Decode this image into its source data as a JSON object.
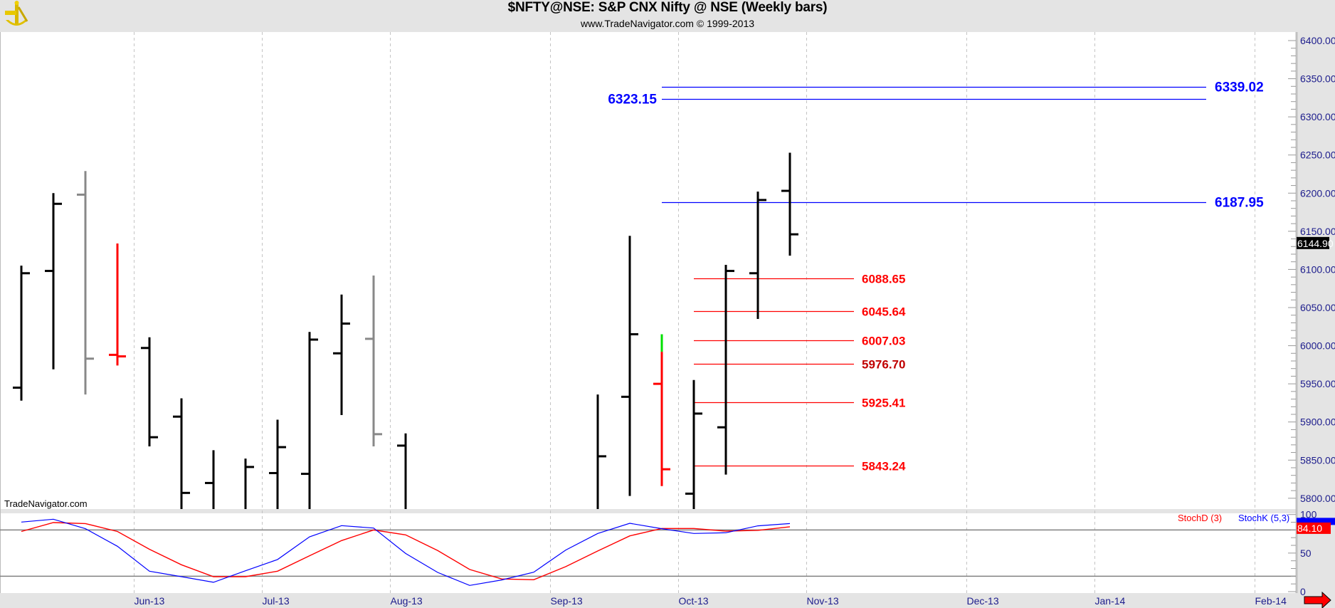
{
  "header": {
    "title": "$NFTY@NSE:  S&P CNX Nifty @ NSE  (Weekly bars)",
    "subtitle": "www.TradeNavigator.com © 1999-2013"
  },
  "watermark": "TradeNavigator.com",
  "colors": {
    "up": "#000000",
    "neutral": "#888888",
    "down": "#ff0000",
    "highlight": "#00e000",
    "resistance": "#0000ff",
    "support": "#ff0000",
    "axis_text": "#1c1c8c",
    "stochD": "#ff0000",
    "stochK": "#0000ff"
  },
  "chart_data": {
    "type": "ohlc-bar",
    "title": "$NFTY@NSE: S&P CNX Nifty @ NSE (Weekly bars)",
    "price_axis": {
      "min": 5800,
      "max": 6400,
      "ticks": [
        "5800.00",
        "5850.00",
        "5900.00",
        "5950.00",
        "6000.00",
        "6050.00",
        "6100.00",
        "6150.00",
        "6200.00",
        "6250.00",
        "6300.00",
        "6350.00",
        "6400.00"
      ]
    },
    "last_price": "6144.90",
    "months": [
      {
        "label": "Jun-13",
        "week": 3.5
      },
      {
        "label": "Jul-13",
        "week": 7.5
      },
      {
        "label": "Aug-13",
        "week": 11.5
      },
      {
        "label": "Sep-13",
        "week": 16.5
      },
      {
        "label": "Oct-13",
        "week": 20.5
      },
      {
        "label": "Nov-13",
        "week": 24.5
      },
      {
        "label": "Dec-13",
        "week": 29.5
      },
      {
        "label": "Jan-14",
        "week": 33.5
      },
      {
        "label": "Feb-14",
        "week": 38.5
      }
    ],
    "bars": [
      {
        "week": 0,
        "o": 5945,
        "h": 6105,
        "l": 5928,
        "c": 6095,
        "color": "up"
      },
      {
        "week": 1,
        "o": 6098,
        "h": 6200,
        "l": 5969,
        "c": 6186,
        "color": "up"
      },
      {
        "week": 2,
        "o": 6198,
        "h": 6229,
        "l": 5936,
        "c": 5983,
        "color": "neutral"
      },
      {
        "week": 3,
        "o": 5988,
        "h": 6134,
        "l": 5974,
        "c": 5986,
        "color": "down"
      },
      {
        "week": 4,
        "o": 5997,
        "h": 6011,
        "l": 5868,
        "c": 5880,
        "color": "up"
      },
      {
        "week": 5,
        "o": 5907,
        "h": 5931,
        "l": 5770,
        "c": 5807,
        "color": "up"
      },
      {
        "week": 6,
        "o": 5820,
        "h": 5863,
        "l": 5760,
        "c": 5790,
        "color": "up"
      },
      {
        "week": 7,
        "o": 5780,
        "h": 5852,
        "l": 5760,
        "c": 5841,
        "color": "up"
      },
      {
        "week": 8,
        "o": 5833,
        "h": 5903,
        "l": 5770,
        "c": 5867,
        "color": "up"
      },
      {
        "week": 9,
        "o": 5832,
        "h": 6018,
        "l": 5770,
        "c": 6008,
        "color": "up"
      },
      {
        "week": 10,
        "o": 5990,
        "h": 6067,
        "l": 5909,
        "c": 6029,
        "color": "up"
      },
      {
        "week": 11,
        "o": 6009,
        "h": 6092,
        "l": 5868,
        "c": 5884,
        "color": "neutral"
      },
      {
        "week": 12,
        "o": 5869,
        "h": 5885,
        "l": 5760,
        "c": 5790,
        "color": "up"
      },
      {
        "week": 18,
        "o": 5780,
        "h": 5936,
        "l": 5760,
        "c": 5855,
        "color": "up"
      },
      {
        "week": 19,
        "o": 5933,
        "h": 6144,
        "l": 5803,
        "c": 6015,
        "color": "up"
      },
      {
        "week": 20,
        "o": 5950,
        "h": 6015,
        "l": 5816,
        "c": 5838,
        "color": "down",
        "highlight_above": 5992
      },
      {
        "week": 21,
        "o": 5806,
        "h": 5955,
        "l": 5770,
        "c": 5911,
        "color": "up"
      },
      {
        "week": 22,
        "o": 5893,
        "h": 6106,
        "l": 5831,
        "c": 6098,
        "color": "up"
      },
      {
        "week": 23,
        "o": 6095,
        "h": 6202,
        "l": 6035,
        "c": 6191,
        "color": "up"
      },
      {
        "week": 24,
        "o": 6203,
        "h": 6253,
        "l": 6118,
        "c": 6146,
        "color": "up"
      }
    ],
    "levels": [
      {
        "value": 6339.02,
        "label": "6339.02",
        "kind": "resistance",
        "from_week": 20,
        "label_side": "right"
      },
      {
        "value": 6323.15,
        "label": "6323.15",
        "kind": "resistance",
        "from_week": 20,
        "label_side": "left"
      },
      {
        "value": 6187.95,
        "label": "6187.95",
        "kind": "resistance",
        "from_week": 20,
        "label_side": "right"
      },
      {
        "value": 6088.65,
        "label": "6088.65",
        "kind": "support",
        "from_week": 21,
        "label_side": "right"
      },
      {
        "value": 6045.64,
        "label": "6045.64",
        "kind": "support",
        "from_week": 21,
        "label_side": "right"
      },
      {
        "value": 6007.03,
        "label": "6007.03",
        "kind": "support",
        "from_week": 21,
        "label_side": "right"
      },
      {
        "value": 5976.7,
        "label": "5976.70",
        "kind": "support",
        "from_week": 21,
        "label_side": "right"
      },
      {
        "value": 5925.41,
        "label": "5925.41",
        "kind": "support",
        "from_week": 21,
        "label_side": "right"
      },
      {
        "value": 5843.24,
        "label": "5843.24",
        "kind": "support",
        "from_week": 21,
        "label_side": "right"
      }
    ],
    "stochastic": {
      "axis": {
        "min": 0,
        "max": 100,
        "ticks": [
          "0",
          "50",
          "100"
        ],
        "guides": [
          20,
          80
        ]
      },
      "legend": {
        "d": "StochD (3)",
        "k": "StochK (5,3)"
      },
      "d_last": "84.10",
      "k": [
        90.2,
        93.9,
        81.6,
        58.8,
        26.5,
        19.4,
        12.1,
        27.1,
        41.6,
        71.1,
        85.6,
        82.5,
        49.5,
        24.9,
        8.0,
        15.1,
        25.2,
        53.9,
        75.4,
        88.6,
        81.6,
        75.4,
        76.4,
        85.3,
        88.3
      ],
      "d": [
        78.0,
        89.6,
        88.3,
        78.0,
        54.9,
        34.8,
        19.4,
        19.4,
        26.5,
        46.5,
        66.2,
        80.0,
        73.6,
        53.3,
        28.7,
        16.4,
        15.4,
        32.4,
        52.7,
        72.3,
        81.9,
        81.9,
        78.5,
        79.5,
        84.1
      ]
    }
  }
}
